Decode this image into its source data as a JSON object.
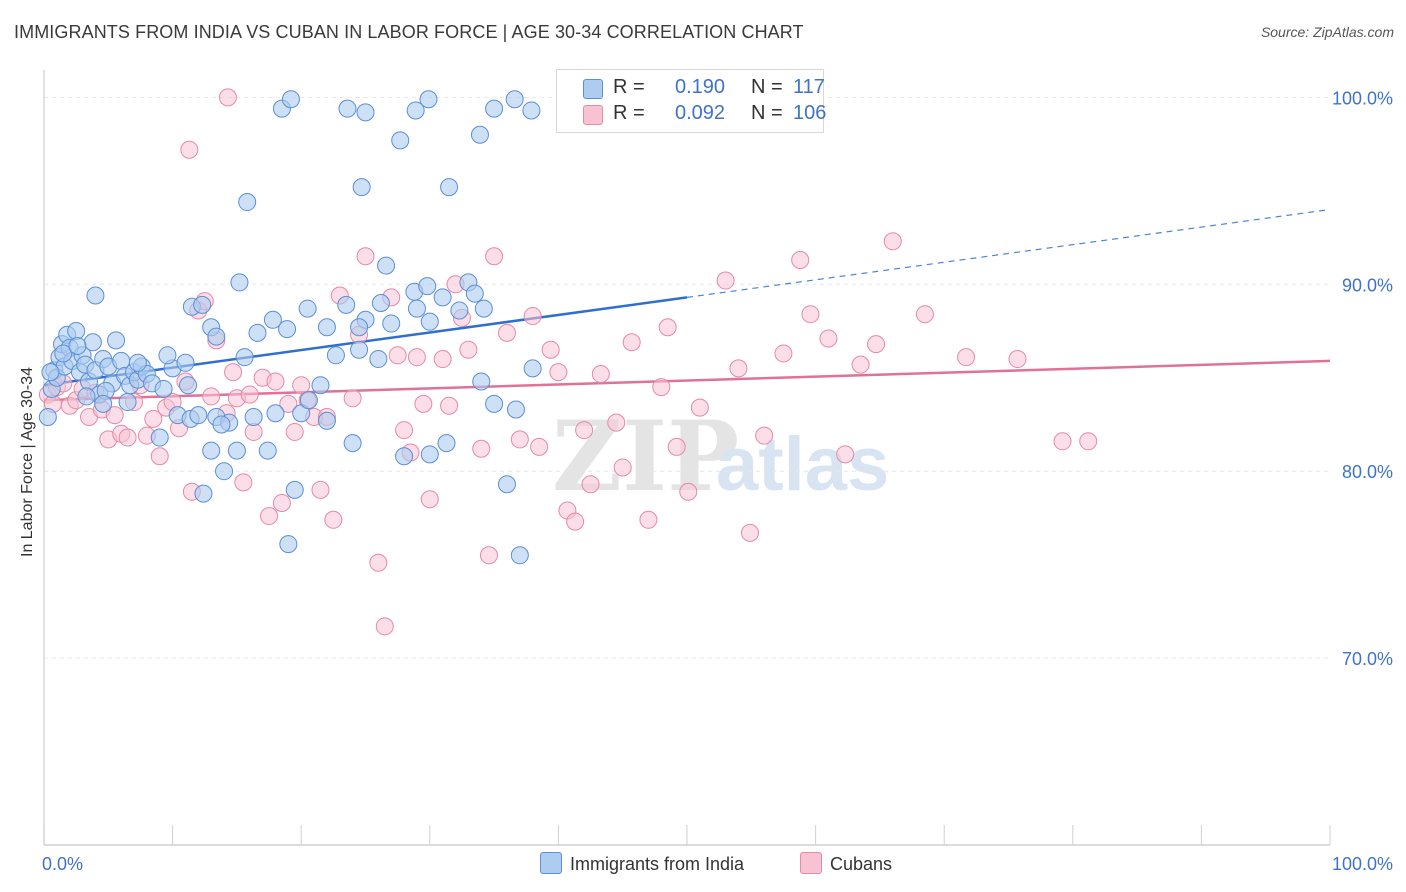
{
  "header": {
    "title": "IMMIGRANTS FROM INDIA VS CUBAN IN LABOR FORCE | AGE 30-34 CORRELATION CHART",
    "source": "Source: ZipAtlas.com"
  },
  "legend": {
    "india": {
      "r_label": "R =",
      "r_value": "0.190",
      "n_label": "N =",
      "n_value": "117"
    },
    "cuba": {
      "r_label": "R =",
      "r_value": "0.092",
      "n_label": "N =",
      "n_value": "106"
    }
  },
  "watermark": {
    "zip": "ZIP",
    "atlas": "atlas"
  },
  "colors": {
    "india_fill": "#aecbf0",
    "india_stroke": "#5b8fd6",
    "india_line": "#2f6fd0",
    "cuba_fill": "#f7c3d3",
    "cuba_stroke": "#e58aa7",
    "cuba_line": "#e07198",
    "tick_label": "#3f73c8"
  },
  "chart_data": {
    "type": "scatter",
    "title": "IMMIGRANTS FROM INDIA VS CUBAN IN LABOR FORCE | AGE 30-34 CORRELATION CHART",
    "xlabel": "",
    "ylabel": "In Labor Force | Age 30-34",
    "xlim": [
      0,
      100
    ],
    "ylim": [
      60,
      102
    ],
    "x_tick_labels": [
      "0.0%",
      "100.0%"
    ],
    "y_ticks": [
      70,
      80,
      90,
      100
    ],
    "y_tick_labels": [
      "70.0%",
      "80.0%",
      "90.0%",
      "100.0%"
    ],
    "grid": true,
    "legend_position": "top-center",
    "series": [
      {
        "name": "Immigrants from India",
        "R": 0.19,
        "N": 117,
        "trend": {
          "x0": 0,
          "y0": 84.6,
          "x1": 50,
          "y1": 89.3,
          "dashed_to_x": 100,
          "dashed_to_y": 94.0
        },
        "points": [
          [
            0.3,
            82.9
          ],
          [
            0.6,
            84.4
          ],
          [
            0.8,
            85.4
          ],
          [
            1.0,
            85.0
          ],
          [
            1.2,
            86.1
          ],
          [
            1.4,
            86.8
          ],
          [
            1.6,
            85.6
          ],
          [
            1.8,
            87.3
          ],
          [
            2.0,
            86.6
          ],
          [
            2.2,
            85.9
          ],
          [
            2.5,
            87.5
          ],
          [
            2.8,
            85.3
          ],
          [
            3.0,
            86.2
          ],
          [
            3.2,
            85.7
          ],
          [
            3.5,
            84.8
          ],
          [
            3.8,
            86.9
          ],
          [
            4.0,
            85.4
          ],
          [
            4.3,
            84.1
          ],
          [
            4.6,
            86.0
          ],
          [
            5.0,
            85.6
          ],
          [
            5.3,
            84.7
          ],
          [
            5.6,
            87.0
          ],
          [
            6.0,
            85.9
          ],
          [
            6.3,
            85.1
          ],
          [
            6.7,
            84.6
          ],
          [
            7.0,
            85.3
          ],
          [
            7.3,
            84.9
          ],
          [
            7.6,
            85.6
          ],
          [
            8.0,
            85.2
          ],
          [
            8.4,
            84.7
          ],
          [
            0.5,
            85.3
          ],
          [
            1.5,
            86.3
          ],
          [
            2.6,
            86.7
          ],
          [
            4.8,
            84.3
          ],
          [
            6.5,
            83.7
          ],
          [
            9.0,
            81.8
          ],
          [
            9.3,
            84.4
          ],
          [
            10.0,
            85.5
          ],
          [
            10.4,
            83.0
          ],
          [
            11.0,
            85.8
          ],
          [
            11.4,
            82.8
          ],
          [
            12.0,
            83.0
          ],
          [
            12.4,
            78.8
          ],
          [
            13.0,
            81.1
          ],
          [
            13.4,
            82.9
          ],
          [
            14.0,
            80.0
          ],
          [
            14.4,
            82.6
          ],
          [
            15.0,
            81.1
          ],
          [
            15.6,
            86.1
          ],
          [
            16.3,
            82.9
          ],
          [
            17.4,
            81.1
          ],
          [
            18.0,
            83.1
          ],
          [
            19.0,
            76.1
          ],
          [
            19.5,
            79.0
          ],
          [
            20.0,
            83.1
          ],
          [
            20.6,
            83.8
          ],
          [
            21.5,
            84.6
          ],
          [
            22.0,
            82.7
          ],
          [
            22.7,
            86.2
          ],
          [
            24.0,
            81.5
          ],
          [
            24.5,
            86.5
          ],
          [
            25.0,
            88.1
          ],
          [
            26.0,
            86.0
          ],
          [
            27.0,
            87.9
          ],
          [
            28.0,
            80.8
          ],
          [
            29.0,
            88.7
          ],
          [
            30.0,
            80.9
          ],
          [
            31.3,
            81.5
          ],
          [
            33.0,
            90.1
          ],
          [
            34.0,
            84.8
          ],
          [
            35.0,
            83.6
          ],
          [
            36.0,
            79.3
          ],
          [
            36.7,
            83.3
          ],
          [
            37.0,
            75.5
          ],
          [
            38.0,
            85.5
          ],
          [
            4.0,
            89.4
          ],
          [
            11.5,
            88.8
          ],
          [
            12.3,
            88.9
          ],
          [
            13.0,
            87.7
          ],
          [
            13.4,
            87.2
          ],
          [
            15.2,
            90.1
          ],
          [
            16.6,
            87.4
          ],
          [
            17.8,
            88.1
          ],
          [
            18.9,
            87.6
          ],
          [
            20.5,
            88.7
          ],
          [
            22.0,
            87.7
          ],
          [
            23.5,
            88.9
          ],
          [
            24.5,
            87.7
          ],
          [
            26.2,
            89.0
          ],
          [
            28.8,
            89.6
          ],
          [
            30.0,
            88.0
          ],
          [
            31.0,
            89.3
          ],
          [
            32.3,
            88.6
          ],
          [
            33.5,
            89.5
          ],
          [
            34.2,
            88.7
          ],
          [
            18.5,
            99.4
          ],
          [
            19.2,
            99.9
          ],
          [
            23.6,
            99.4
          ],
          [
            25.0,
            99.2
          ],
          [
            27.7,
            97.7
          ],
          [
            28.9,
            99.3
          ],
          [
            29.9,
            99.9
          ],
          [
            31.5,
            95.2
          ],
          [
            33.9,
            98.0
          ],
          [
            35.0,
            99.4
          ],
          [
            36.6,
            99.9
          ],
          [
            37.9,
            99.3
          ],
          [
            15.8,
            94.4
          ],
          [
            24.7,
            95.2
          ],
          [
            26.6,
            91.0
          ],
          [
            29.8,
            89.9
          ],
          [
            7.3,
            85.8
          ],
          [
            3.3,
            84.0
          ],
          [
            9.6,
            86.2
          ],
          [
            11.2,
            84.6
          ],
          [
            4.6,
            83.6
          ],
          [
            13.8,
            82.5
          ]
        ]
      },
      {
        "name": "Cubans",
        "R": 0.092,
        "N": 106,
        "trend": {
          "x0": 0,
          "y0": 83.8,
          "x1": 100,
          "y1": 85.9
        },
        "points": [
          [
            0.3,
            84.1
          ],
          [
            0.7,
            83.6
          ],
          [
            1.0,
            84.5
          ],
          [
            1.5,
            84.7
          ],
          [
            2.0,
            83.5
          ],
          [
            2.5,
            83.8
          ],
          [
            3.0,
            84.4
          ],
          [
            3.5,
            82.9
          ],
          [
            4.0,
            84.2
          ],
          [
            4.5,
            83.3
          ],
          [
            5.0,
            81.7
          ],
          [
            5.5,
            83.0
          ],
          [
            6.0,
            82.0
          ],
          [
            6.5,
            81.8
          ],
          [
            7.0,
            83.7
          ],
          [
            7.5,
            84.6
          ],
          [
            8.0,
            81.9
          ],
          [
            8.5,
            82.8
          ],
          [
            9.0,
            80.8
          ],
          [
            9.5,
            83.4
          ],
          [
            10.0,
            83.7
          ],
          [
            10.5,
            82.3
          ],
          [
            11.0,
            84.8
          ],
          [
            11.5,
            78.9
          ],
          [
            12.0,
            88.6
          ],
          [
            12.5,
            89.1
          ],
          [
            13.0,
            84.0
          ],
          [
            13.4,
            87.0
          ],
          [
            14.2,
            83.1
          ],
          [
            14.7,
            85.3
          ],
          [
            15.0,
            83.9
          ],
          [
            15.5,
            79.4
          ],
          [
            16.0,
            84.1
          ],
          [
            16.3,
            82.1
          ],
          [
            17.0,
            85.0
          ],
          [
            17.5,
            77.6
          ],
          [
            18.0,
            84.8
          ],
          [
            18.5,
            78.3
          ],
          [
            19.0,
            83.6
          ],
          [
            19.5,
            82.1
          ],
          [
            20.0,
            84.6
          ],
          [
            20.5,
            83.8
          ],
          [
            21.0,
            82.9
          ],
          [
            21.5,
            79.0
          ],
          [
            22.0,
            82.9
          ],
          [
            22.5,
            77.4
          ],
          [
            23.0,
            89.4
          ],
          [
            24.0,
            83.9
          ],
          [
            24.5,
            87.3
          ],
          [
            25.0,
            91.5
          ],
          [
            26.0,
            75.1
          ],
          [
            26.5,
            71.7
          ],
          [
            27.0,
            89.3
          ],
          [
            27.5,
            86.2
          ],
          [
            28.0,
            82.2
          ],
          [
            28.5,
            81.0
          ],
          [
            29.0,
            86.1
          ],
          [
            29.5,
            83.6
          ],
          [
            30.0,
            78.5
          ],
          [
            31.0,
            86.0
          ],
          [
            31.5,
            83.5
          ],
          [
            32.0,
            90.0
          ],
          [
            32.5,
            88.2
          ],
          [
            33.0,
            86.5
          ],
          [
            34.0,
            81.2
          ],
          [
            34.6,
            75.5
          ],
          [
            35.0,
            91.5
          ],
          [
            36.0,
            87.4
          ],
          [
            37.0,
            81.7
          ],
          [
            38.0,
            88.3
          ],
          [
            38.5,
            81.3
          ],
          [
            39.4,
            86.5
          ],
          [
            40.0,
            85.3
          ],
          [
            40.7,
            77.9
          ],
          [
            41.3,
            77.3
          ],
          [
            42.0,
            82.2
          ],
          [
            42.5,
            79.3
          ],
          [
            43.3,
            85.2
          ],
          [
            44.5,
            82.6
          ],
          [
            45.0,
            80.2
          ],
          [
            45.7,
            86.9
          ],
          [
            47.0,
            77.4
          ],
          [
            48.0,
            84.5
          ],
          [
            48.5,
            87.7
          ],
          [
            49.2,
            81.3
          ],
          [
            50.1,
            78.9
          ],
          [
            51.0,
            83.4
          ],
          [
            53.0,
            90.2
          ],
          [
            54.0,
            85.5
          ],
          [
            54.9,
            76.7
          ],
          [
            56.0,
            81.9
          ],
          [
            57.5,
            86.3
          ],
          [
            58.8,
            91.3
          ],
          [
            59.6,
            88.4
          ],
          [
            61.0,
            87.1
          ],
          [
            62.3,
            80.9
          ],
          [
            63.5,
            85.7
          ],
          [
            64.7,
            86.8
          ],
          [
            66.0,
            92.3
          ],
          [
            68.5,
            88.4
          ],
          [
            71.7,
            86.1
          ],
          [
            75.7,
            86.0
          ],
          [
            79.2,
            81.6
          ],
          [
            81.2,
            81.6
          ],
          [
            11.3,
            97.2
          ],
          [
            14.3,
            100.0
          ]
        ]
      }
    ]
  }
}
